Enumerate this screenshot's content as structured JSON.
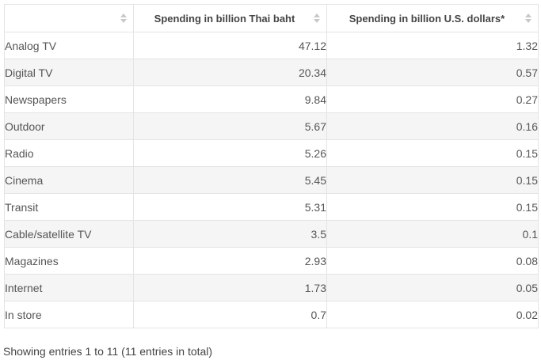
{
  "table": {
    "columns": [
      "",
      "Spending in billion Thai baht",
      "Spending in billion U.S. dollars*"
    ],
    "rows": [
      {
        "label": "Analog TV",
        "thb": "47.12",
        "usd": "1.32"
      },
      {
        "label": "Digital TV",
        "thb": "20.34",
        "usd": "0.57"
      },
      {
        "label": "Newspapers",
        "thb": "9.84",
        "usd": "0.27"
      },
      {
        "label": "Outdoor",
        "thb": "5.67",
        "usd": "0.16"
      },
      {
        "label": "Radio",
        "thb": "5.26",
        "usd": "0.15"
      },
      {
        "label": "Cinema",
        "thb": "5.45",
        "usd": "0.15"
      },
      {
        "label": "Transit",
        "thb": "5.31",
        "usd": "0.15"
      },
      {
        "label": "Cable/satellite TV",
        "thb": "3.5",
        "usd": "0.1"
      },
      {
        "label": "Magazines",
        "thb": "2.93",
        "usd": "0.08"
      },
      {
        "label": "Internet",
        "thb": "1.73",
        "usd": "0.05"
      },
      {
        "label": "In store",
        "thb": "0.7",
        "usd": "0.02"
      }
    ]
  },
  "footer": {
    "info": "Showing entries 1 to 11 (11 entries in total)"
  },
  "icons": {
    "sort": "sort-icon"
  },
  "colors": {
    "row_stripe": "#f5f5f5",
    "border": "#e4e4e4",
    "text": "#444444"
  }
}
